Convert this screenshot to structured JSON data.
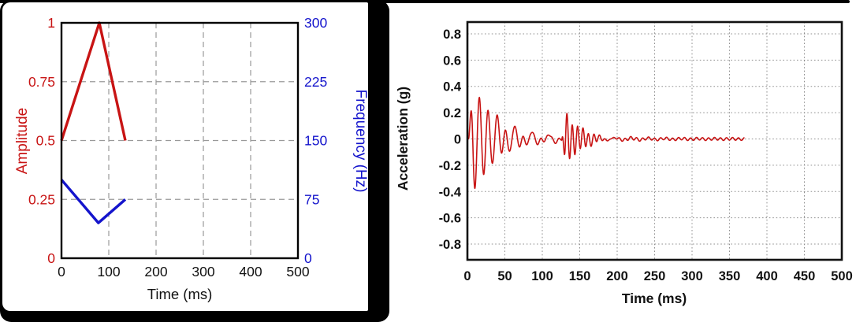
{
  "page": {
    "background": "#ffffff",
    "frame_color": "#000000",
    "accent_red": "#c81414",
    "accent_blue": "#1414cc"
  },
  "chart_data": [
    {
      "type": "line",
      "panel": "left",
      "title": "",
      "xlabel": "Time (ms)",
      "xlim": [
        0,
        500
      ],
      "x_ticks": [
        0,
        100,
        200,
        300,
        400,
        500
      ],
      "grid": "dashed",
      "grid_color": "#999999",
      "axes": {
        "left": {
          "label": "Amplitude",
          "color": "#c81414",
          "lim": [
            0,
            1
          ],
          "ticks": [
            "0",
            "0.25",
            "0.5",
            "0.75",
            "1"
          ]
        },
        "right": {
          "label": "Frequency (Hz)",
          "color": "#1414cc",
          "lim": [
            0,
            300
          ],
          "ticks": [
            "0",
            "75",
            "150",
            "225",
            "300"
          ]
        }
      },
      "series": [
        {
          "name": "amplitude",
          "axis": "left",
          "color": "#c81414",
          "points": [
            [
              0,
              0.5
            ],
            [
              80,
              1.0
            ],
            [
              135,
              0.5
            ]
          ]
        },
        {
          "name": "frequency",
          "axis": "right",
          "color": "#1414cc",
          "points": [
            [
              0,
              100
            ],
            [
              78,
              45
            ],
            [
              135,
              75
            ]
          ]
        }
      ]
    },
    {
      "type": "line",
      "panel": "right",
      "title": "",
      "xlabel": "Time (ms)",
      "ylabel": "Acceleration (g)",
      "xlim": [
        0,
        500
      ],
      "ylim": [
        -0.9,
        0.9
      ],
      "x_ticks": [
        0,
        50,
        100,
        150,
        200,
        250,
        300,
        350,
        400,
        450,
        500
      ],
      "y_ticks": [
        "0.8",
        "0.6",
        "0.4",
        "0.2",
        "0",
        "-0.2",
        "-0.4",
        "-0.6",
        "-0.8"
      ],
      "grid": "dotted",
      "grid_color": "#8f8f8f",
      "series": [
        {
          "name": "acceleration",
          "color": "#c81414",
          "t_end_ms": 370,
          "approx_peaks": [
            [
              4,
              0.2
            ],
            [
              10,
              -0.33
            ],
            [
              16,
              0.38
            ],
            [
              21,
              -0.33
            ],
            [
              29,
              0.19
            ],
            [
              35,
              0.17
            ],
            [
              40,
              -0.15
            ],
            [
              50,
              0.08
            ],
            [
              133,
              0.17
            ],
            [
              137,
              -0.18
            ],
            [
              141,
              0.14
            ],
            [
              200,
              0.01
            ]
          ],
          "signal_model": {
            "description": "sum of damped sinusoid bursts; v(t)=amp*ramp(t)*exp(-(t-t0-ramp)/decay)*sin(2*pi*f*(t-phase_ms)/1000)",
            "sample_step_ms": 0.4,
            "bursts": [
              {
                "t0": 1.5,
                "ramp": 6,
                "amp": 0.42,
                "freq_hz": 85,
                "phase_ms": 13,
                "decay_ms": 30
              },
              {
                "t0": 28,
                "ramp": 10,
                "amp": 0.05,
                "freq_hz": 45,
                "phase_ms": 36,
                "decay_ms": 90
              },
              {
                "t0": 126,
                "ramp": 5,
                "amp": 0.2,
                "freq_hz": 140,
                "phase_ms": 131.2,
                "decay_ms": 20
              },
              {
                "t0": 3,
                "ramp": 2,
                "amp": 0.01,
                "freq_hz": 125,
                "phase_ms": 0,
                "decay_ms": 100000
              }
            ]
          }
        }
      ]
    }
  ]
}
